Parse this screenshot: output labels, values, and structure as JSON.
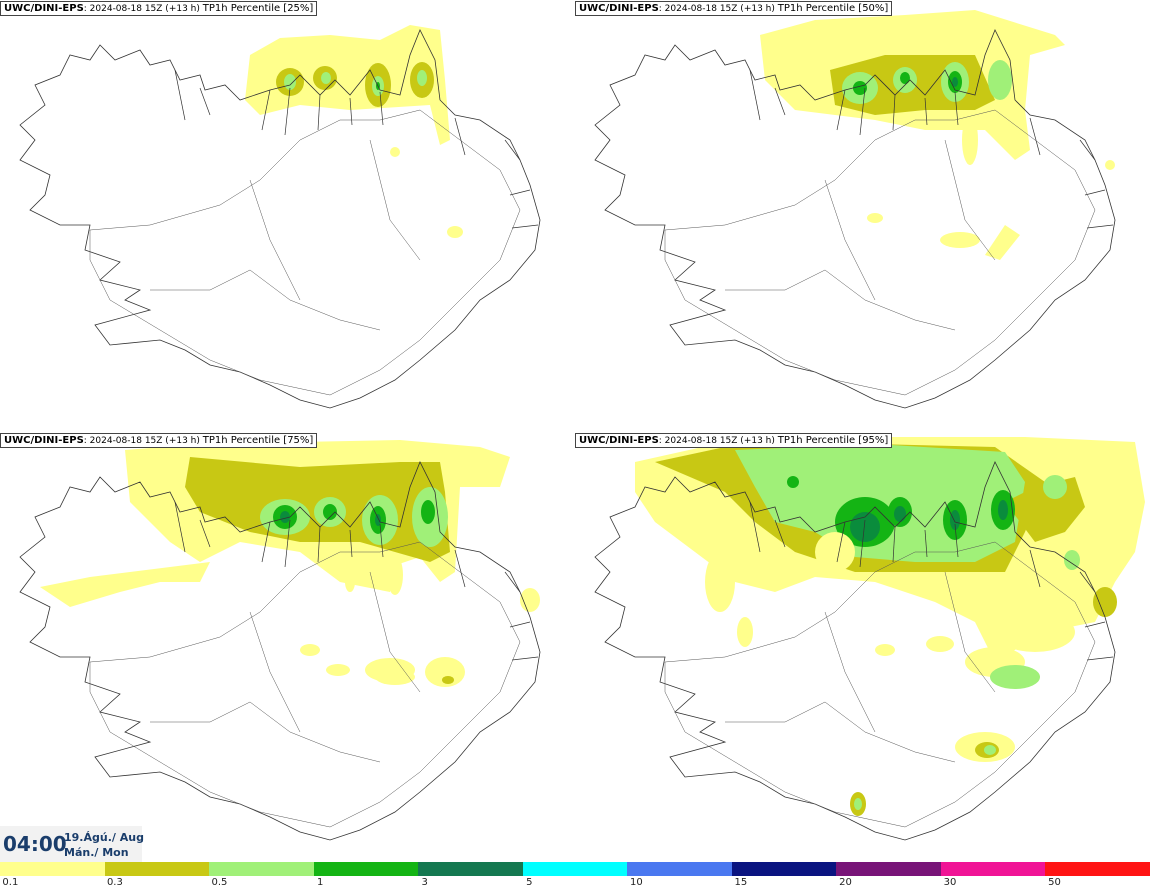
{
  "panels": [
    {
      "model": "UWC/DINI-EPS",
      "run": ": 2024-08-18 15Z (+13 h)",
      "field": "TP1h Percentile [25%]",
      "level": 1
    },
    {
      "model": "UWC/DINI-EPS",
      "run": ": 2024-08-18 15Z (+13 h)",
      "field": "TP1h Percentile [50%]",
      "level": 2
    },
    {
      "model": "UWC/DINI-EPS",
      "run": ": 2024-08-18 15Z (+13 h)",
      "field": "TP1h Percentile [75%]",
      "level": 3
    },
    {
      "model": "UWC/DINI-EPS",
      "run": ": 2024-08-18 15Z (+13 h)",
      "field": "TP1h Percentile [95%]",
      "level": 4
    }
  ],
  "valid_time": {
    "hour": "04:00",
    "date_line": "19.Ágú./ Aug",
    "day_line": "Mán./ Mon"
  },
  "colorbar": {
    "colors": [
      "#ffff8c",
      "#c8c814",
      "#a0f078",
      "#14b414",
      "#147850",
      "#00ffff",
      "#4a78f0",
      "#0a1480",
      "#781478",
      "#f01496",
      "#ff1414"
    ],
    "labels": [
      "0.1",
      "0.3",
      "0.5",
      "1",
      "3",
      "5",
      "10",
      "15",
      "20",
      "30",
      "50"
    ]
  },
  "colors": {
    "background": "#ffffff",
    "coast": "#333333",
    "time_text": "#1a3d6b"
  }
}
